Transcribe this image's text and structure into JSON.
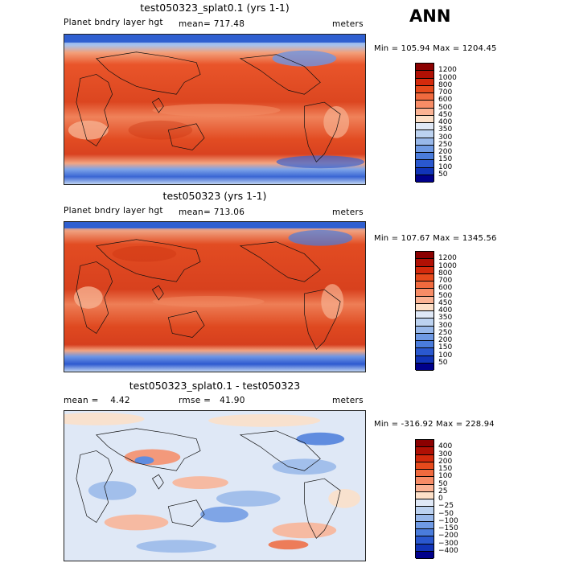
{
  "ann_label": "ANN",
  "panels": [
    {
      "title": "test050323_splat0.1 (yrs 1-1)",
      "left_label": "Planet bndry layer hgt",
      "mid_label": "mean= 717.48",
      "units": "meters",
      "minmax": "Min = 105.94 Max = 1204.45"
    },
    {
      "title": "test050323 (yrs 1-1)",
      "left_label": "Planet bndry layer hgt",
      "mid_label": "mean= 713.06",
      "units": "meters",
      "minmax": "Min = 107.67 Max = 1345.56"
    },
    {
      "title": "test050323_splat0.1 - test050323",
      "left_label": "mean =    4.42",
      "mid_label": "rmse =   41.90",
      "units": "meters",
      "minmax": "Min = -316.92 Max = 228.94"
    }
  ],
  "chart_data": [
    {
      "type": "heatmap",
      "title": "test050323_splat0.1 (yrs 1-1)",
      "variable": "Planet bndry layer hgt",
      "units": "meters",
      "mean": 717.48,
      "min": 105.94,
      "max": 1204.45,
      "colorbar_levels": [
        "1200",
        "1000",
        "800",
        "700",
        "600",
        "500",
        "450",
        "400",
        "350",
        "300",
        "250",
        "200",
        "150",
        "100",
        "50"
      ],
      "colorbar_colors": [
        "#8b0000",
        "#b01004",
        "#d42a0c",
        "#e64a1c",
        "#f06a3e",
        "#f78c66",
        "#fbb394",
        "#fde0c8",
        "#dfe8f6",
        "#bcd2f0",
        "#98b8ea",
        "#6f9ae4",
        "#4a7cdc",
        "#2a58cf",
        "#1134b8",
        "#00008b"
      ]
    },
    {
      "type": "heatmap",
      "title": "test050323 (yrs 1-1)",
      "variable": "Planet bndry layer hgt",
      "units": "meters",
      "mean": 713.06,
      "min": 107.67,
      "max": 1345.56,
      "colorbar_levels": [
        "1200",
        "1000",
        "800",
        "700",
        "600",
        "500",
        "450",
        "400",
        "350",
        "300",
        "250",
        "200",
        "150",
        "100",
        "50"
      ],
      "colorbar_colors": [
        "#8b0000",
        "#b01004",
        "#d42a0c",
        "#e64a1c",
        "#f06a3e",
        "#f78c66",
        "#fbb394",
        "#fde0c8",
        "#dfe8f6",
        "#bcd2f0",
        "#98b8ea",
        "#6f9ae4",
        "#4a7cdc",
        "#2a58cf",
        "#1134b8",
        "#00008b"
      ]
    },
    {
      "type": "heatmap",
      "title": "test050323_splat0.1 - test050323",
      "units": "meters",
      "mean": 4.42,
      "rmse": 41.9,
      "min": -316.92,
      "max": 228.94,
      "colorbar_levels": [
        "400",
        "300",
        "200",
        "150",
        "100",
        "50",
        "25",
        "0",
        "−25",
        "−50",
        "−100",
        "−150",
        "−200",
        "−300",
        "−400"
      ],
      "colorbar_colors": [
        "#8b0000",
        "#b01004",
        "#d42a0c",
        "#e64a1c",
        "#f06a3e",
        "#f78c66",
        "#fbb394",
        "#fde0c8",
        "#dfe8f6",
        "#bcd2f0",
        "#98b8ea",
        "#6f9ae4",
        "#4a7cdc",
        "#2a58cf",
        "#1134b8",
        "#00008b"
      ]
    }
  ]
}
